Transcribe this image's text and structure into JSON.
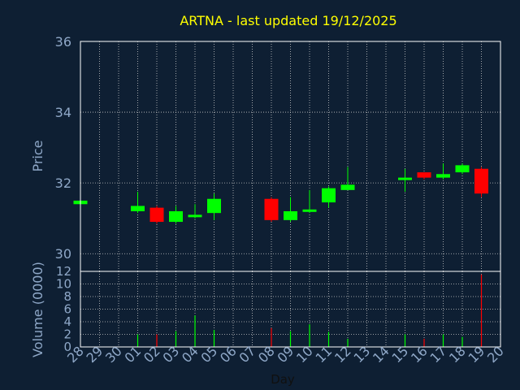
{
  "chart_data": [
    {
      "type": "candlestick",
      "title": "ARTNA - last updated 19/12/2025",
      "ylabel": "Price",
      "ylim": [
        29.5,
        36
      ],
      "yticks": [
        30,
        32,
        34,
        36
      ],
      "grid": true,
      "x": [
        "28",
        "29",
        "30",
        "01",
        "02",
        "03",
        "04",
        "05",
        "06",
        "07",
        "08",
        "09",
        "10",
        "11",
        "12",
        "13",
        "14",
        "15",
        "16",
        "17",
        "18",
        "19",
        "20"
      ],
      "candles": [
        {
          "x": "28",
          "open": 31.4,
          "close": 31.5,
          "high": 31.5,
          "low": 31.4
        },
        {
          "x": "01",
          "open": 31.2,
          "close": 31.35,
          "high": 31.75,
          "low": 31.15
        },
        {
          "x": "02",
          "open": 31.3,
          "close": 30.9,
          "high": 31.35,
          "low": 30.85
        },
        {
          "x": "03",
          "open": 30.9,
          "close": 31.2,
          "high": 31.35,
          "low": 30.85
        },
        {
          "x": "04",
          "open": 31.05,
          "close": 31.1,
          "high": 31.4,
          "low": 31.0
        },
        {
          "x": "05",
          "open": 31.15,
          "close": 31.55,
          "high": 31.7,
          "low": 30.95
        },
        {
          "x": "08",
          "open": 31.55,
          "close": 30.95,
          "high": 31.6,
          "low": 30.9
        },
        {
          "x": "09",
          "open": 30.95,
          "close": 31.2,
          "high": 31.6,
          "low": 30.9
        },
        {
          "x": "10",
          "open": 31.2,
          "close": 31.25,
          "high": 31.8,
          "low": 31.15
        },
        {
          "x": "11",
          "open": 31.45,
          "close": 31.85,
          "high": 31.9,
          "low": 31.3
        },
        {
          "x": "12",
          "open": 31.8,
          "close": 31.95,
          "high": 32.45,
          "low": 31.8
        },
        {
          "x": "15",
          "open": 32.1,
          "close": 32.15,
          "high": 32.4,
          "low": 31.75
        },
        {
          "x": "16",
          "open": 32.3,
          "close": 32.15,
          "high": 32.3,
          "low": 32.1
        },
        {
          "x": "17",
          "open": 32.15,
          "close": 32.25,
          "high": 32.55,
          "low": 32.1
        },
        {
          "x": "18",
          "open": 32.3,
          "close": 32.5,
          "high": 32.55,
          "low": 32.25
        },
        {
          "x": "19",
          "open": 32.4,
          "close": 31.7,
          "high": 32.45,
          "low": 31.6
        }
      ],
      "up_color": "#00ff00",
      "down_color": "#ff0000"
    },
    {
      "type": "bar",
      "ylabel": "Volume (0000)",
      "xlabel": "Day",
      "ylim": [
        0,
        12
      ],
      "yticks": [
        0,
        2,
        4,
        6,
        8,
        10,
        12
      ],
      "grid": true,
      "categories": [
        "28",
        "29",
        "30",
        "01",
        "02",
        "03",
        "04",
        "05",
        "06",
        "07",
        "08",
        "09",
        "10",
        "11",
        "12",
        "13",
        "14",
        "15",
        "16",
        "17",
        "18",
        "19",
        "20"
      ],
      "bars": [
        {
          "x": "01",
          "value": 2.0,
          "direction": "up"
        },
        {
          "x": "02",
          "value": 2.0,
          "direction": "down"
        },
        {
          "x": "03",
          "value": 2.5,
          "direction": "up"
        },
        {
          "x": "04",
          "value": 5.0,
          "direction": "up"
        },
        {
          "x": "05",
          "value": 2.7,
          "direction": "up"
        },
        {
          "x": "08",
          "value": 3.0,
          "direction": "down"
        },
        {
          "x": "09",
          "value": 2.5,
          "direction": "up"
        },
        {
          "x": "10",
          "value": 3.6,
          "direction": "up"
        },
        {
          "x": "11",
          "value": 2.4,
          "direction": "up"
        },
        {
          "x": "12",
          "value": 1.3,
          "direction": "up"
        },
        {
          "x": "15",
          "value": 2.0,
          "direction": "up"
        },
        {
          "x": "16",
          "value": 1.3,
          "direction": "down"
        },
        {
          "x": "17",
          "value": 2.0,
          "direction": "up"
        },
        {
          "x": "18",
          "value": 1.6,
          "direction": "up"
        },
        {
          "x": "19",
          "value": 11.5,
          "direction": "down"
        }
      ]
    }
  ],
  "colors": {
    "background": "#0e1f33",
    "plot_border": "#ffffff",
    "grid": "#c8c8c8",
    "title": "#ffff00",
    "axis_text": "#8fa8c8",
    "xlabel_text": "#101010"
  }
}
